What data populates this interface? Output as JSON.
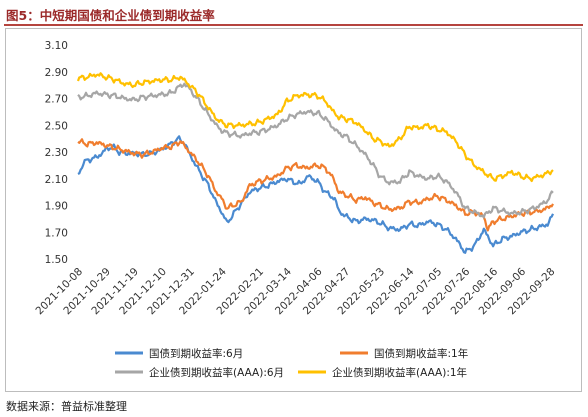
{
  "figure": {
    "title": "图5：中短期国债和企业债到期收益率",
    "source": "数据来源：普益标准整理"
  },
  "chart_data": {
    "type": "line",
    "title": "",
    "xlabel": "",
    "ylabel": "",
    "ylim": [
      1.5,
      3.1
    ],
    "yticks": [
      "3.10",
      "2.90",
      "2.70",
      "2.50",
      "2.30",
      "2.10",
      "1.90",
      "1.70",
      "1.50"
    ],
    "ytick_values": [
      3.1,
      2.9,
      2.7,
      2.5,
      2.3,
      2.1,
      1.9,
      1.7,
      1.5
    ],
    "xlim": [
      "2021-10-08",
      "2022-09-30"
    ],
    "xticks": [
      "2021-10-08",
      "2021-10-29",
      "2021-11-19",
      "2021-12-10",
      "2021-12-31",
      "2022-01-24",
      "2022-02-21",
      "2022-03-14",
      "2022-04-06",
      "2022-04-27",
      "2022-05-23",
      "2022-06-14",
      "2022-07-05",
      "2022-07-26",
      "2022-08-16",
      "2022-09-06",
      "2022-09-28"
    ],
    "grid": false,
    "legend_position": "bottom",
    "series": [
      {
        "name": "国债到期收益率:6月",
        "color": "#4a8ad0",
        "points": [
          [
            "2021-10-08",
            2.12
          ],
          [
            "2021-10-12",
            2.22
          ],
          [
            "2021-10-18",
            2.25
          ],
          [
            "2021-10-22",
            2.26
          ],
          [
            "2021-10-26",
            2.29
          ],
          [
            "2021-10-29",
            2.32
          ],
          [
            "2021-11-03",
            2.34
          ],
          [
            "2021-11-08",
            2.3
          ],
          [
            "2021-11-12",
            2.29
          ],
          [
            "2021-11-19",
            2.29
          ],
          [
            "2021-11-26",
            2.28
          ],
          [
            "2021-12-03",
            2.29
          ],
          [
            "2021-12-10",
            2.32
          ],
          [
            "2021-12-17",
            2.36
          ],
          [
            "2021-12-22",
            2.4
          ],
          [
            "2021-12-27",
            2.37
          ],
          [
            "2021-12-31",
            2.28
          ],
          [
            "2022-01-07",
            2.16
          ],
          [
            "2022-01-14",
            2.05
          ],
          [
            "2022-01-20",
            1.92
          ],
          [
            "2022-01-24",
            1.85
          ],
          [
            "2022-01-28",
            1.77
          ],
          [
            "2022-02-08",
            1.92
          ],
          [
            "2022-02-14",
            2.0
          ],
          [
            "2022-02-21",
            2.03
          ],
          [
            "2022-02-28",
            2.05
          ],
          [
            "2022-03-07",
            2.08
          ],
          [
            "2022-03-14",
            2.1
          ],
          [
            "2022-03-18",
            2.08
          ],
          [
            "2022-03-24",
            2.06
          ],
          [
            "2022-03-30",
            2.12
          ],
          [
            "2022-04-06",
            2.08
          ],
          [
            "2022-04-12",
            2.0
          ],
          [
            "2022-04-19",
            1.95
          ],
          [
            "2022-04-22",
            1.86
          ],
          [
            "2022-04-27",
            1.82
          ],
          [
            "2022-05-05",
            1.78
          ],
          [
            "2022-05-12",
            1.8
          ],
          [
            "2022-05-18",
            1.79
          ],
          [
            "2022-05-23",
            1.77
          ],
          [
            "2022-05-30",
            1.73
          ],
          [
            "2022-06-07",
            1.72
          ],
          [
            "2022-06-14",
            1.76
          ],
          [
            "2022-06-21",
            1.75
          ],
          [
            "2022-06-28",
            1.78
          ],
          [
            "2022-07-05",
            1.76
          ],
          [
            "2022-07-12",
            1.72
          ],
          [
            "2022-07-19",
            1.65
          ],
          [
            "2022-07-26",
            1.55
          ],
          [
            "2022-08-02",
            1.6
          ],
          [
            "2022-08-09",
            1.72
          ],
          [
            "2022-08-16",
            1.6
          ],
          [
            "2022-08-23",
            1.65
          ],
          [
            "2022-08-30",
            1.67
          ],
          [
            "2022-09-06",
            1.7
          ],
          [
            "2022-09-13",
            1.72
          ],
          [
            "2022-09-20",
            1.74
          ],
          [
            "2022-09-26",
            1.76
          ],
          [
            "2022-09-30",
            1.83
          ]
        ]
      },
      {
        "name": "国债到期收益率:1年",
        "color": "#f07d2e",
        "points": [
          [
            "2021-10-08",
            2.38
          ],
          [
            "2021-10-15",
            2.36
          ],
          [
            "2021-10-22",
            2.37
          ],
          [
            "2021-10-29",
            2.35
          ],
          [
            "2021-11-05",
            2.33
          ],
          [
            "2021-11-12",
            2.31
          ],
          [
            "2021-11-19",
            2.29
          ],
          [
            "2021-11-26",
            2.28
          ],
          [
            "2021-12-03",
            2.3
          ],
          [
            "2021-12-10",
            2.33
          ],
          [
            "2021-12-17",
            2.34
          ],
          [
            "2021-12-24",
            2.38
          ],
          [
            "2021-12-31",
            2.3
          ],
          [
            "2022-01-07",
            2.22
          ],
          [
            "2022-01-14",
            2.12
          ],
          [
            "2022-01-20",
            2.0
          ],
          [
            "2022-01-24",
            1.95
          ],
          [
            "2022-01-28",
            1.88
          ],
          [
            "2022-02-08",
            1.93
          ],
          [
            "2022-02-14",
            2.05
          ],
          [
            "2022-02-21",
            2.08
          ],
          [
            "2022-02-28",
            2.1
          ],
          [
            "2022-03-07",
            2.12
          ],
          [
            "2022-03-14",
            2.18
          ],
          [
            "2022-03-21",
            2.2
          ],
          [
            "2022-03-28",
            2.18
          ],
          [
            "2022-04-06",
            2.2
          ],
          [
            "2022-04-12",
            2.18
          ],
          [
            "2022-04-18",
            2.1
          ],
          [
            "2022-04-22",
            2.0
          ],
          [
            "2022-04-27",
            1.98
          ],
          [
            "2022-05-05",
            1.94
          ],
          [
            "2022-05-12",
            1.96
          ],
          [
            "2022-05-18",
            1.92
          ],
          [
            "2022-05-23",
            1.9
          ],
          [
            "2022-05-30",
            1.87
          ],
          [
            "2022-06-07",
            1.88
          ],
          [
            "2022-06-14",
            1.93
          ],
          [
            "2022-06-21",
            1.92
          ],
          [
            "2022-06-28",
            1.95
          ],
          [
            "2022-07-05",
            1.97
          ],
          [
            "2022-07-12",
            1.94
          ],
          [
            "2022-07-19",
            1.9
          ],
          [
            "2022-07-26",
            1.84
          ],
          [
            "2022-08-02",
            1.85
          ],
          [
            "2022-08-09",
            1.82
          ],
          [
            "2022-08-12",
            1.72
          ],
          [
            "2022-08-16",
            1.78
          ],
          [
            "2022-08-23",
            1.8
          ],
          [
            "2022-08-30",
            1.82
          ],
          [
            "2022-09-06",
            1.84
          ],
          [
            "2022-09-13",
            1.85
          ],
          [
            "2022-09-20",
            1.86
          ],
          [
            "2022-09-26",
            1.88
          ],
          [
            "2022-09-30",
            1.92
          ]
        ]
      },
      {
        "name": "企业债到期收益率(AAA):6月",
        "color": "#a6a6a6",
        "points": [
          [
            "2021-10-08",
            2.71
          ],
          [
            "2021-10-15",
            2.72
          ],
          [
            "2021-10-22",
            2.74
          ],
          [
            "2021-10-29",
            2.73
          ],
          [
            "2021-11-05",
            2.72
          ],
          [
            "2021-11-12",
            2.7
          ],
          [
            "2021-11-19",
            2.69
          ],
          [
            "2021-11-26",
            2.71
          ],
          [
            "2021-12-03",
            2.72
          ],
          [
            "2021-12-10",
            2.73
          ],
          [
            "2021-12-17",
            2.74
          ],
          [
            "2021-12-22",
            2.78
          ],
          [
            "2021-12-27",
            2.81
          ],
          [
            "2021-12-31",
            2.77
          ],
          [
            "2022-01-07",
            2.68
          ],
          [
            "2022-01-14",
            2.58
          ],
          [
            "2022-01-20",
            2.5
          ],
          [
            "2022-01-24",
            2.46
          ],
          [
            "2022-01-28",
            2.44
          ],
          [
            "2022-02-08",
            2.42
          ],
          [
            "2022-02-14",
            2.44
          ],
          [
            "2022-02-21",
            2.45
          ],
          [
            "2022-02-28",
            2.47
          ],
          [
            "2022-03-07",
            2.5
          ],
          [
            "2022-03-14",
            2.55
          ],
          [
            "2022-03-21",
            2.58
          ],
          [
            "2022-03-28",
            2.6
          ],
          [
            "2022-04-06",
            2.59
          ],
          [
            "2022-04-12",
            2.55
          ],
          [
            "2022-04-18",
            2.48
          ],
          [
            "2022-04-22",
            2.44
          ],
          [
            "2022-04-27",
            2.42
          ],
          [
            "2022-05-05",
            2.35
          ],
          [
            "2022-05-12",
            2.28
          ],
          [
            "2022-05-18",
            2.2
          ],
          [
            "2022-05-23",
            2.12
          ],
          [
            "2022-05-30",
            2.07
          ],
          [
            "2022-06-07",
            2.08
          ],
          [
            "2022-06-14",
            2.15
          ],
          [
            "2022-06-21",
            2.12
          ],
          [
            "2022-06-28",
            2.1
          ],
          [
            "2022-07-05",
            2.12
          ],
          [
            "2022-07-12",
            2.08
          ],
          [
            "2022-07-19",
            2.0
          ],
          [
            "2022-07-26",
            1.88
          ],
          [
            "2022-08-02",
            1.85
          ],
          [
            "2022-08-09",
            1.82
          ],
          [
            "2022-08-16",
            1.88
          ],
          [
            "2022-08-23",
            1.86
          ],
          [
            "2022-08-30",
            1.84
          ],
          [
            "2022-09-06",
            1.85
          ],
          [
            "2022-09-13",
            1.87
          ],
          [
            "2022-09-20",
            1.9
          ],
          [
            "2022-09-26",
            1.94
          ],
          [
            "2022-09-30",
            2.0
          ]
        ]
      },
      {
        "name": "企业债到期收益率(AAA):1年",
        "color": "#ffc000",
        "points": [
          [
            "2021-10-08",
            2.85
          ],
          [
            "2021-10-15",
            2.86
          ],
          [
            "2021-10-22",
            2.88
          ],
          [
            "2021-10-29",
            2.86
          ],
          [
            "2021-11-05",
            2.84
          ],
          [
            "2021-11-12",
            2.81
          ],
          [
            "2021-11-19",
            2.8
          ],
          [
            "2021-11-26",
            2.82
          ],
          [
            "2021-12-03",
            2.83
          ],
          [
            "2021-12-10",
            2.84
          ],
          [
            "2021-12-17",
            2.84
          ],
          [
            "2021-12-24",
            2.86
          ],
          [
            "2021-12-31",
            2.8
          ],
          [
            "2022-01-07",
            2.73
          ],
          [
            "2022-01-14",
            2.63
          ],
          [
            "2022-01-20",
            2.55
          ],
          [
            "2022-01-24",
            2.52
          ],
          [
            "2022-01-28",
            2.5
          ],
          [
            "2022-02-08",
            2.5
          ],
          [
            "2022-02-14",
            2.51
          ],
          [
            "2022-02-21",
            2.52
          ],
          [
            "2022-02-28",
            2.55
          ],
          [
            "2022-03-07",
            2.58
          ],
          [
            "2022-03-14",
            2.68
          ],
          [
            "2022-03-21",
            2.72
          ],
          [
            "2022-03-28",
            2.73
          ],
          [
            "2022-04-06",
            2.72
          ],
          [
            "2022-04-12",
            2.68
          ],
          [
            "2022-04-18",
            2.6
          ],
          [
            "2022-04-22",
            2.56
          ],
          [
            "2022-04-27",
            2.55
          ],
          [
            "2022-05-05",
            2.52
          ],
          [
            "2022-05-12",
            2.46
          ],
          [
            "2022-05-18",
            2.4
          ],
          [
            "2022-05-23",
            2.38
          ],
          [
            "2022-05-30",
            2.34
          ],
          [
            "2022-06-07",
            2.4
          ],
          [
            "2022-06-14",
            2.49
          ],
          [
            "2022-06-21",
            2.48
          ],
          [
            "2022-06-28",
            2.5
          ],
          [
            "2022-07-05",
            2.47
          ],
          [
            "2022-07-12",
            2.45
          ],
          [
            "2022-07-19",
            2.38
          ],
          [
            "2022-07-26",
            2.28
          ],
          [
            "2022-08-02",
            2.2
          ],
          [
            "2022-08-09",
            2.15
          ],
          [
            "2022-08-16",
            2.1
          ],
          [
            "2022-08-23",
            2.12
          ],
          [
            "2022-08-30",
            2.15
          ],
          [
            "2022-09-06",
            2.12
          ],
          [
            "2022-09-13",
            2.1
          ],
          [
            "2022-09-20",
            2.12
          ],
          [
            "2022-09-26",
            2.14
          ],
          [
            "2022-09-30",
            2.17
          ]
        ]
      }
    ]
  }
}
